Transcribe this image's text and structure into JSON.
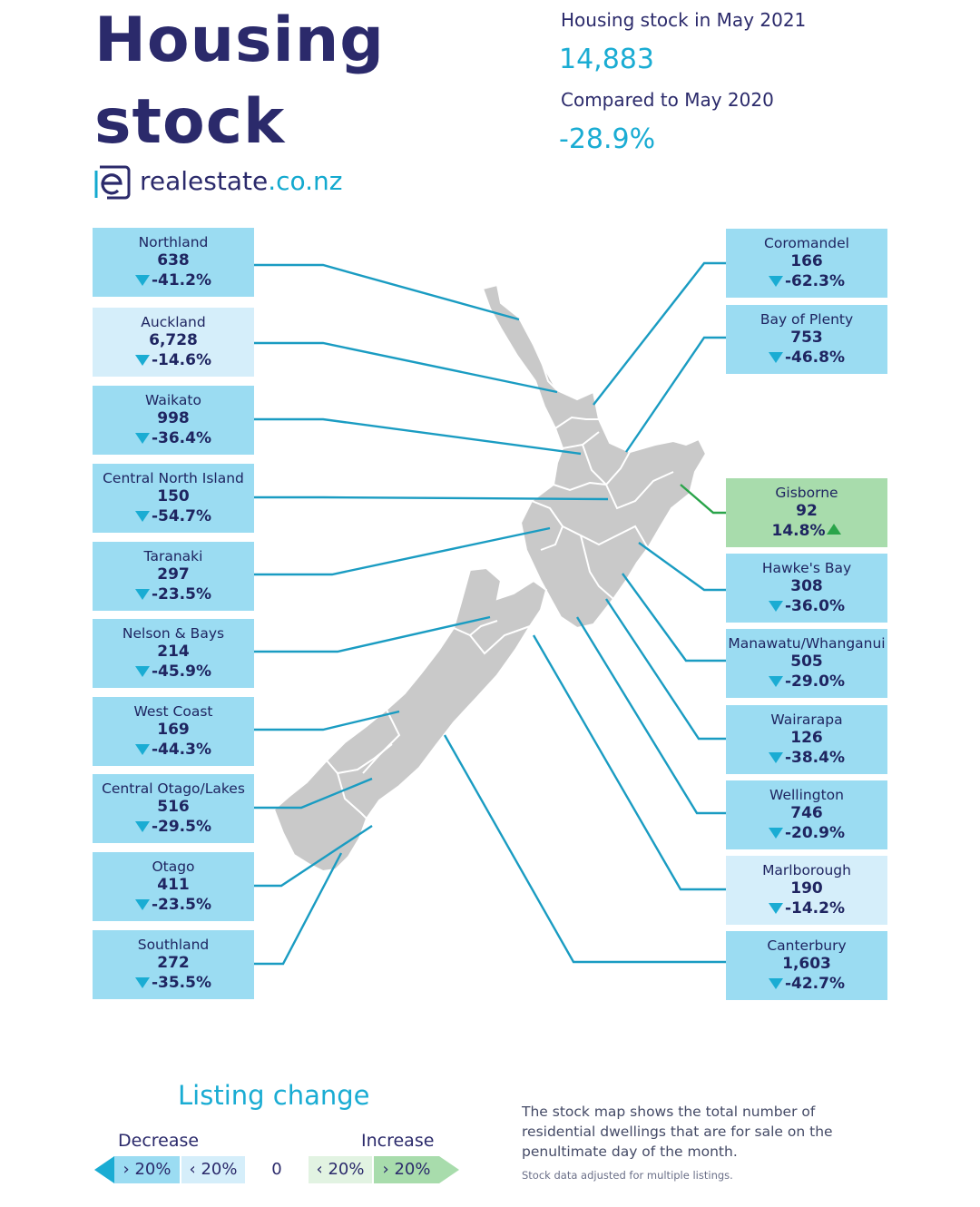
{
  "header": {
    "title_line1": "Housing",
    "title_line2": "stock",
    "stock_label": "Housing stock in May 2021",
    "stock_value": "14,883",
    "compare_label": "Compared to May 2020",
    "compare_value": "-28.9%"
  },
  "logo": {
    "name": "realestate",
    "tld": ".co.nz",
    "icon": "e-logo-icon"
  },
  "colors": {
    "strong_decrease": "#9bdcf2",
    "mild_decrease": "#d5eefa",
    "increase": "#a8dcac",
    "accent": "#1aacd3",
    "map_land": "#c9c9c9",
    "leader_line": "#1a9cc2"
  },
  "regions_left": [
    {
      "name": "Northland",
      "stock": "638",
      "change": "-41.2%",
      "direction": "down",
      "band": "strong_decrease"
    },
    {
      "name": "Auckland",
      "stock": "6,728",
      "change": "-14.6%",
      "direction": "down",
      "band": "mild_decrease"
    },
    {
      "name": "Waikato",
      "stock": "998",
      "change": "-36.4%",
      "direction": "down",
      "band": "strong_decrease"
    },
    {
      "name": "Central North Island",
      "stock": "150",
      "change": "-54.7%",
      "direction": "down",
      "band": "strong_decrease"
    },
    {
      "name": "Taranaki",
      "stock": "297",
      "change": "-23.5%",
      "direction": "down",
      "band": "strong_decrease"
    },
    {
      "name": "Nelson & Bays",
      "stock": "214",
      "change": "-45.9%",
      "direction": "down",
      "band": "strong_decrease"
    },
    {
      "name": "West Coast",
      "stock": "169",
      "change": "-44.3%",
      "direction": "down",
      "band": "strong_decrease"
    },
    {
      "name": "Central Otago/Lakes",
      "stock": "516",
      "change": "-29.5%",
      "direction": "down",
      "band": "strong_decrease"
    },
    {
      "name": "Otago",
      "stock": "411",
      "change": "-23.5%",
      "direction": "down",
      "band": "strong_decrease"
    },
    {
      "name": "Southland",
      "stock": "272",
      "change": "-35.5%",
      "direction": "down",
      "band": "strong_decrease"
    }
  ],
  "regions_right": [
    {
      "name": "Coromandel",
      "stock": "166",
      "change": "-62.3%",
      "direction": "down",
      "band": "strong_decrease"
    },
    {
      "name": "Bay of Plenty",
      "stock": "753",
      "change": "-46.8%",
      "direction": "down",
      "band": "strong_decrease"
    },
    {
      "name": "Gisborne",
      "stock": "92",
      "change": "14.8%",
      "direction": "up",
      "band": "increase"
    },
    {
      "name": "Hawke's Bay",
      "stock": "308",
      "change": "-36.0%",
      "direction": "down",
      "band": "strong_decrease"
    },
    {
      "name": "Manawatu/Whanganui",
      "stock": "505",
      "change": "-29.0%",
      "direction": "down",
      "band": "strong_decrease"
    },
    {
      "name": "Wairarapa",
      "stock": "126",
      "change": "-38.4%",
      "direction": "down",
      "band": "strong_decrease"
    },
    {
      "name": "Wellington",
      "stock": "746",
      "change": "-20.9%",
      "direction": "down",
      "band": "strong_decrease"
    },
    {
      "name": "Marlborough",
      "stock": "190",
      "change": "-14.2%",
      "direction": "down",
      "band": "mild_decrease"
    },
    {
      "name": "Canterbury",
      "stock": "1,603",
      "change": "-42.7%",
      "direction": "down",
      "band": "strong_decrease"
    }
  ],
  "legend": {
    "title": "Listing change",
    "decrease_label": "Decrease",
    "increase_label": "Increase",
    "segments": [
      "› 20%",
      "‹ 20%",
      "0",
      "‹ 20%",
      "› 20%"
    ]
  },
  "note": "The stock map shows the total number of residential dwellings that are for sale on the penultimate day of the month.",
  "footnote": "Stock data adjusted for multiple listings."
}
